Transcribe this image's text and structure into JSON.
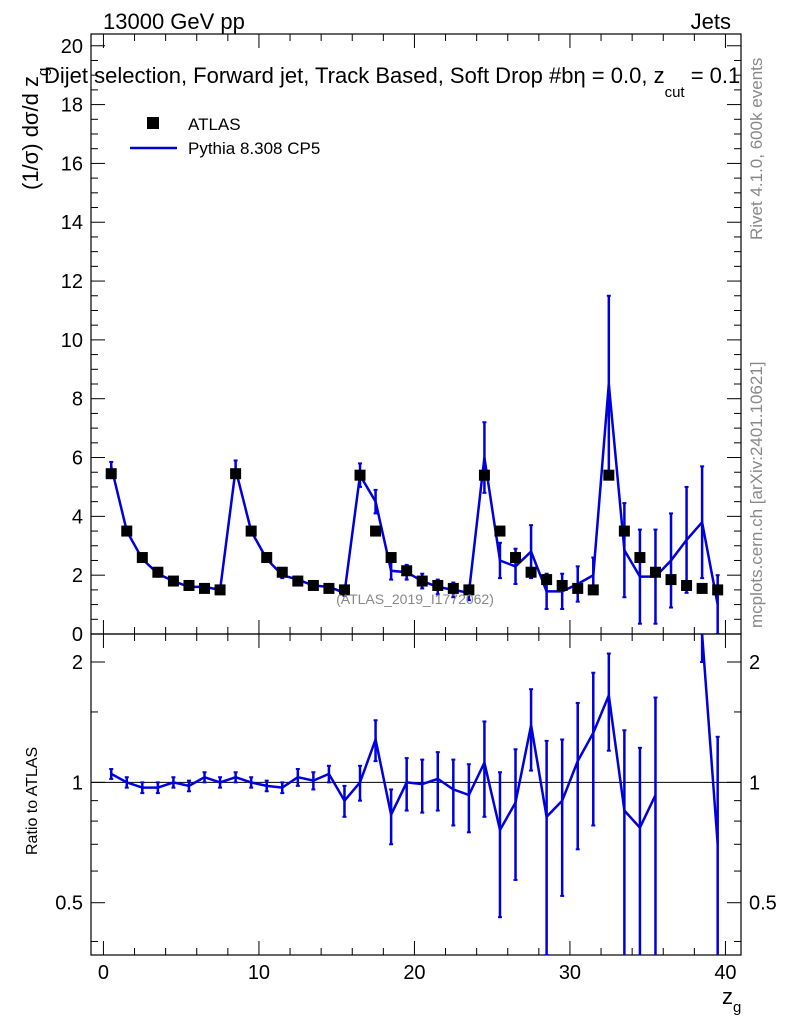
{
  "header": {
    "energy": "13000 GeV pp",
    "category": "Jets",
    "title_main": "Dijet selection, Forward jet, Track Based, Soft Drop #b",
    "title_eta": "η = 0.0, z",
    "title_cut_sub": "cut",
    "title_tail": " = 0.1"
  },
  "side": {
    "rivet": "Rivet 4.1.0,  600k events",
    "mcplots": "mcplots.cern.ch [arXiv:2401.10621]"
  },
  "watermark": "(ATLAS_2019_I1772062)",
  "colors": {
    "data": "#000000",
    "mc": "#0000dd",
    "axis": "#000000",
    "side": "#888888"
  },
  "chart_data": {
    "type": "scatter",
    "xlabel_main": "z",
    "xlabel_sub": "g",
    "ylabel_main": "(1/σ) dσ/d z",
    "ylabel_sub": "g",
    "ratio_ylabel": "Ratio to ATLAS",
    "xlim": [
      -0.8,
      41
    ],
    "ylim": [
      0,
      20.4
    ],
    "ratio_ylim": [
      0.37,
      2.35
    ],
    "x_ticks": [
      "0",
      "10",
      "20",
      "30",
      "40"
    ],
    "y_ticks": [
      "0",
      "2",
      "4",
      "6",
      "8",
      "10",
      "12",
      "14",
      "16",
      "18",
      "20"
    ],
    "ratio_ticks": [
      "0.5",
      "1",
      "2"
    ],
    "legend": {
      "position": "top-left",
      "data_label": "ATLAS",
      "mc_label": "Pythia 8.308 CP5"
    },
    "x": [
      0.5,
      1.5,
      2.5,
      3.5,
      4.5,
      5.5,
      6.5,
      7.5,
      8.5,
      9.5,
      10.5,
      11.5,
      12.5,
      13.5,
      14.5,
      15.5,
      16.5,
      17.5,
      18.5,
      19.5,
      20.5,
      21.5,
      22.5,
      23.5,
      24.5,
      25.5,
      26.5,
      27.5,
      28.5,
      29.5,
      30.5,
      31.5,
      32.5,
      33.5,
      34.5,
      35.5,
      36.5,
      37.5,
      38.5,
      39.5
    ],
    "data_values": [
      5.45,
      3.5,
      2.6,
      2.1,
      1.8,
      1.65,
      1.55,
      1.5,
      5.45,
      3.5,
      2.6,
      2.1,
      1.8,
      1.65,
      1.55,
      1.5,
      5.4,
      3.5,
      2.6,
      2.15,
      1.8,
      1.65,
      1.55,
      1.5,
      5.4,
      3.5,
      2.6,
      2.1,
      1.85,
      1.65,
      1.55,
      1.5,
      5.4,
      3.5,
      2.6,
      2.1,
      1.85,
      1.65,
      1.55,
      1.5
    ],
    "mc_values": [
      5.7,
      3.5,
      2.55,
      2.05,
      1.8,
      1.6,
      1.6,
      1.5,
      5.6,
      3.5,
      2.55,
      2.0,
      1.85,
      1.65,
      1.6,
      1.4,
      5.4,
      4.5,
      2.15,
      2.1,
      1.8,
      1.6,
      1.5,
      1.4,
      6.0,
      2.5,
      2.3,
      2.8,
      1.45,
      1.45,
      1.7,
      2.0,
      8.5,
      2.85,
      1.95,
      1.95,
      2.5,
      3.2,
      3.8,
      1.0
    ],
    "mc_errors": [
      0.15,
      0.12,
      0.1,
      0.1,
      0.1,
      0.1,
      0.1,
      0.1,
      0.3,
      0.15,
      0.1,
      0.1,
      0.1,
      0.1,
      0.1,
      0.1,
      0.4,
      0.4,
      0.3,
      0.25,
      0.25,
      0.25,
      0.25,
      0.25,
      1.2,
      0.6,
      0.6,
      0.9,
      0.6,
      0.6,
      0.6,
      0.6,
      3.0,
      1.6,
      1.6,
      1.6,
      1.6,
      1.8,
      1.9,
      1.0
    ],
    "ratio_values": [
      1.05,
      1.0,
      0.97,
      0.97,
      1.0,
      0.98,
      1.03,
      1.0,
      1.03,
      1.0,
      0.98,
      0.97,
      1.03,
      1.01,
      1.05,
      0.9,
      1.0,
      1.28,
      0.83,
      1.0,
      0.99,
      1.02,
      0.96,
      0.93,
      1.12,
      0.76,
      0.89,
      1.39,
      0.82,
      0.9,
      1.13,
      1.33,
      1.65,
      0.85,
      0.77,
      0.93,
      null,
      null,
      2.35,
      0.7
    ],
    "ratio_errors": [
      0.03,
      0.03,
      0.03,
      0.03,
      0.03,
      0.03,
      0.03,
      0.03,
      0.03,
      0.03,
      0.03,
      0.03,
      0.05,
      0.05,
      0.05,
      0.08,
      0.1,
      0.15,
      0.13,
      0.15,
      0.15,
      0.17,
      0.18,
      0.18,
      0.3,
      0.3,
      0.32,
      0.32,
      0.45,
      0.38,
      0.45,
      0.55,
      0.45,
      0.5,
      0.45,
      0.7,
      null,
      null,
      0.35,
      0.6
    ]
  }
}
